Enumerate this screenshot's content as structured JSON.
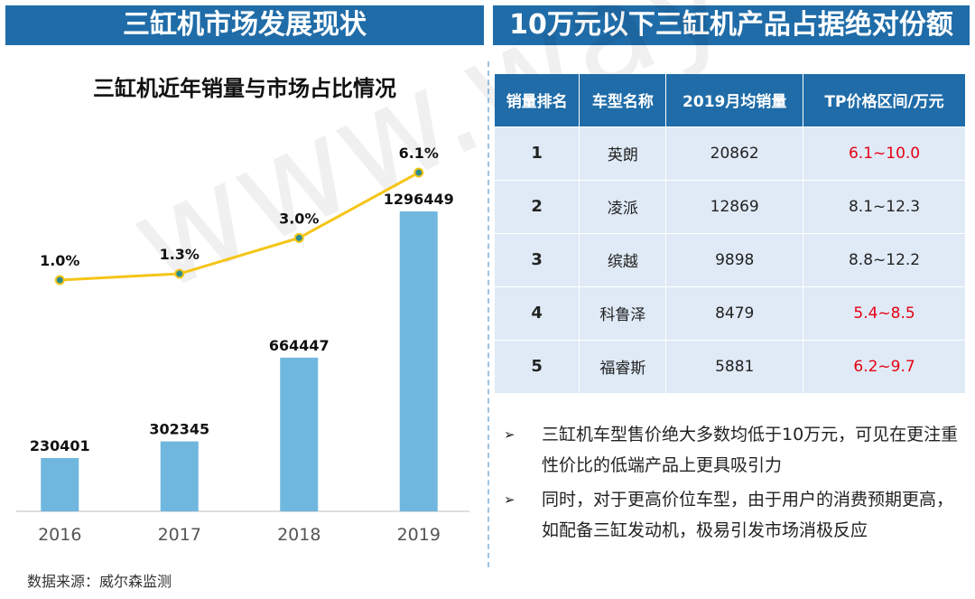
{
  "left_banner": "三缸机市场发展现状",
  "right_banner": "10万元以下三缸机产品占据绝对份额",
  "chart_data": {
    "type": "bar",
    "title": "三缸机近年销量与市场占比情况",
    "categories": [
      "2016",
      "2017",
      "2018",
      "2019"
    ],
    "series": [
      {
        "type": "bar",
        "values": [
          230401,
          302345,
          664447,
          1296449
        ],
        "labels": [
          "230401",
          "302345",
          "664447",
          "1296449"
        ],
        "color": "#6fb7de"
      },
      {
        "type": "line",
        "values": [
          1.0,
          1.3,
          3.0,
          6.1
        ],
        "labels": [
          "1.0%",
          "1.3%",
          "3.0%",
          "6.1%"
        ],
        "color": "#f5c518"
      }
    ],
    "xlabel": "",
    "ylabel": "",
    "grid": false
  },
  "table": {
    "headers": [
      "销量排名",
      "车型名称",
      "2019月均销量",
      "TP价格区间/万元"
    ],
    "rows": [
      {
        "rank": "1",
        "model": "英朗",
        "sales": "20862",
        "price": "6.1~10.0",
        "price_color": "red"
      },
      {
        "rank": "2",
        "model": "凌派",
        "sales": "12869",
        "price": "8.1~12.3",
        "price_color": "black"
      },
      {
        "rank": "3",
        "model": "缤越",
        "sales": "9898",
        "price": "8.8~12.2",
        "price_color": "black"
      },
      {
        "rank": "4",
        "model": "科鲁泽",
        "sales": "8479",
        "price": "5.4~8.5",
        "price_color": "red"
      },
      {
        "rank": "5",
        "model": "福睿斯",
        "sales": "5881",
        "price": "6.2~9.7",
        "price_color": "red"
      }
    ]
  },
  "bullets": [
    {
      "mark": "➢",
      "text": "三缸机车型售价绝大多数均低于10万元，可见在更注重性价比的低端产品上更具吸引力"
    },
    {
      "mark": "➢",
      "text": "同时，对于更高价位车型，由于用户的消费预期更高，如配备三缸发动机，极易引发市场消极反应"
    }
  ],
  "source": "数据来源：威尔森监测",
  "watermark": "www.way-s.cn"
}
